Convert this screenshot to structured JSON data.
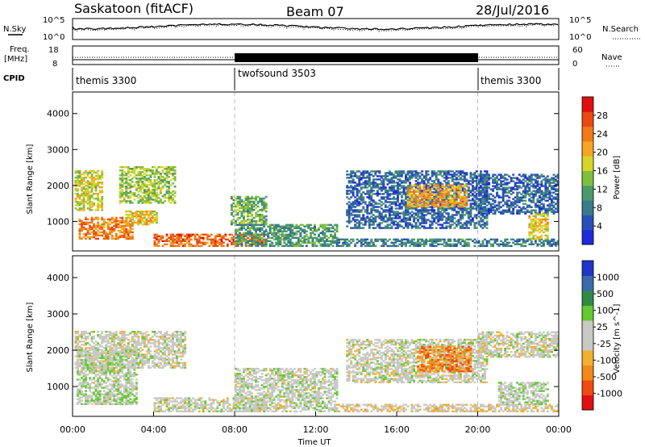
{
  "header": {
    "station": "Saskatoon (fitACF)",
    "beam": "Beam 07",
    "date": "28/Jul/2016"
  },
  "noise_panel": {
    "left_label": "N.Sky",
    "right_label": "N.Search",
    "left_ticks": [
      "10^5",
      "10^0"
    ],
    "right_ticks": [
      "10^5",
      "10^0"
    ]
  },
  "freq_panel": {
    "left_label_1": "Freq.",
    "left_label_2": "[MHz]",
    "left_ticks": [
      "18",
      "8"
    ],
    "right_label": "Nave",
    "right_ticks": [
      "60",
      "0"
    ]
  },
  "cpid_panel": {
    "label": "CPID",
    "segments": [
      {
        "name": "themis 3300",
        "start_hour": 0,
        "end_hour": 8
      },
      {
        "name": "twofsound 3503",
        "start_hour": 8,
        "end_hour": 20
      },
      {
        "name": "themis 3300",
        "start_hour": 20,
        "end_hour": 24
      }
    ]
  },
  "colors": {
    "power": [
      "#1f2bd6",
      "#2a4fb8",
      "#3a7a8a",
      "#4a9a6a",
      "#7fbf3f",
      "#d6d62a",
      "#f5a623",
      "#f07a1a",
      "#e84a12",
      "#e01010"
    ],
    "velocity": [
      "#e01010",
      "#f04a10",
      "#f08a1a",
      "#f0b030",
      "#c8c8c4",
      "#c8c8c4",
      "#66c832",
      "#2f8a4a",
      "#3a6aa8",
      "#1f35c8"
    ]
  },
  "chart_data": [
    {
      "type": "heatmap",
      "title": "",
      "xlabel": "",
      "ylabel": "Slant Range [km]",
      "xlim": [
        0,
        24
      ],
      "ylim": [
        180,
        4600
      ],
      "yticks": [
        1000,
        2000,
        3000,
        4000
      ],
      "colorbar": {
        "label": "Power [dB]",
        "ticks": [
          "4",
          "8",
          "12",
          "16",
          "20",
          "24",
          "28"
        ],
        "range": [
          0,
          30
        ]
      },
      "regions": [
        {
          "t0": 0.1,
          "t1": 1.5,
          "r0": 1300,
          "r1": 2400,
          "value": 16
        },
        {
          "t0": 0.3,
          "t1": 3.0,
          "r0": 500,
          "r1": 1100,
          "value": 22
        },
        {
          "t0": 2.3,
          "t1": 5.0,
          "r0": 1500,
          "r1": 2500,
          "value": 14
        },
        {
          "t0": 2.6,
          "t1": 4.2,
          "r0": 900,
          "r1": 1300,
          "value": 18
        },
        {
          "t0": 4.0,
          "t1": 9.5,
          "r0": 300,
          "r1": 650,
          "value": 24
        },
        {
          "t0": 7.8,
          "t1": 9.5,
          "r0": 900,
          "r1": 1700,
          "value": 12
        },
        {
          "t0": 8.0,
          "t1": 13.0,
          "r0": 300,
          "r1": 900,
          "value": 10
        },
        {
          "t0": 13.0,
          "t1": 24.0,
          "r0": 300,
          "r1": 520,
          "value": 8
        },
        {
          "t0": 13.5,
          "t1": 20.5,
          "r0": 800,
          "r1": 2400,
          "value": 6
        },
        {
          "t0": 16.5,
          "t1": 19.5,
          "r0": 1400,
          "r1": 2000,
          "value": 20
        },
        {
          "t0": 20.0,
          "t1": 24.0,
          "r0": 1200,
          "r1": 2300,
          "value": 6
        },
        {
          "t0": 22.5,
          "t1": 23.5,
          "r0": 500,
          "r1": 1200,
          "value": 18
        }
      ]
    },
    {
      "type": "heatmap",
      "title": "",
      "xlabel": "Time UT",
      "ylabel": "Slant Range [km]",
      "xlim": [
        0,
        24
      ],
      "ylim": [
        180,
        4600
      ],
      "xticks": [
        "00:00",
        "04:00",
        "08:00",
        "12:00",
        "16:00",
        "20:00",
        "00:00"
      ],
      "yticks": [
        1000,
        2000,
        3000,
        4000
      ],
      "colorbar": {
        "label": "Velocity [m s^-1]",
        "ticks": [
          "-1000",
          "-500",
          "-100",
          "-25",
          "25",
          "100",
          "500",
          "1000"
        ],
        "range": [
          -1200,
          1200
        ]
      },
      "regions": [
        {
          "t0": 0.1,
          "t1": 5.5,
          "r0": 1500,
          "r1": 2500,
          "value": 0
        },
        {
          "t0": 0.2,
          "t1": 3.2,
          "r0": 500,
          "r1": 2000,
          "value": 80
        },
        {
          "t0": 4.0,
          "t1": 9.5,
          "r0": 300,
          "r1": 700,
          "value": 0
        },
        {
          "t0": 8.0,
          "t1": 13.0,
          "r0": 300,
          "r1": 1500,
          "value": 40
        },
        {
          "t0": 13.0,
          "t1": 24.0,
          "r0": 300,
          "r1": 500,
          "value": -150
        },
        {
          "t0": 13.5,
          "t1": 20.5,
          "r0": 1100,
          "r1": 2300,
          "value": 0
        },
        {
          "t0": 17.0,
          "t1": 19.7,
          "r0": 1400,
          "r1": 2100,
          "value": -600
        },
        {
          "t0": 20.0,
          "t1": 24.0,
          "r0": 1800,
          "r1": 2500,
          "value": 0
        },
        {
          "t0": 21.0,
          "t1": 23.5,
          "r0": 500,
          "r1": 1100,
          "value": 90
        }
      ]
    }
  ]
}
